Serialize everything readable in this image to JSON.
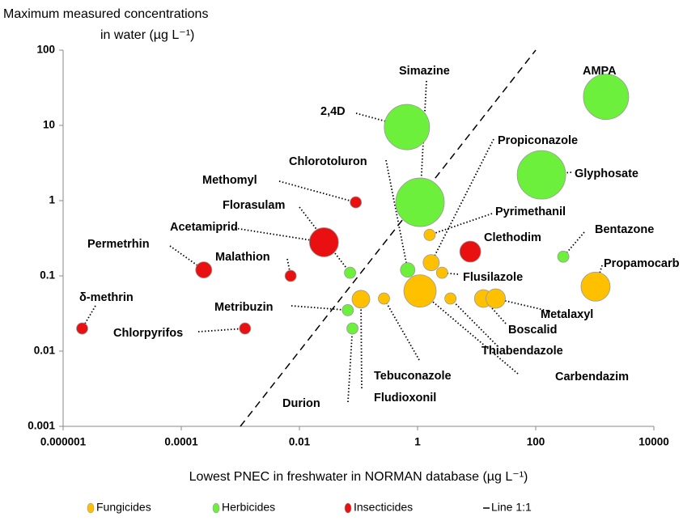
{
  "chart_data": {
    "type": "bubble",
    "y_label_lines": [
      "Maximum measured concentrations",
      "in water (µg L⁻¹)"
    ],
    "x_label": "Lowest PNEC in freshwater in NORMAN database (µg L⁻¹)",
    "log_x": true,
    "log_y": true,
    "xlim": [
      1e-06,
      10000
    ],
    "ylim": [
      0.001,
      100
    ],
    "xticks": [
      {
        "value": 1e-06,
        "label": "0.000001"
      },
      0.0001,
      0.01,
      1,
      100,
      10000
    ],
    "yticks": [
      0.001,
      0.01,
      0.1,
      1,
      10,
      100
    ],
    "reference_line": {
      "name": "Line 1:1",
      "color": "#000000"
    },
    "series": [
      {
        "name": "Fungicides",
        "color": "#FFC000",
        "labels": [
          "Fludioxonil",
          "Tebuconazole",
          "Carbendazim",
          "Pyrimethanil",
          "Propiconazole",
          "Flusilazole",
          "Thiabendazole",
          "Boscalid",
          "Metalaxyl",
          "Propamocarb"
        ],
        "x": [
          0.11,
          0.27,
          1.1,
          1.6,
          1.7,
          2.6,
          3.6,
          13,
          21,
          1030
        ],
        "values": [
          0.049,
          0.05,
          0.063,
          0.35,
          0.15,
          0.11,
          0.05,
          0.05,
          0.05,
          0.072
        ],
        "sizes": [
          11,
          7,
          20,
          7,
          10,
          7,
          7,
          11,
          12,
          18
        ]
      },
      {
        "name": "Herbicides",
        "color": "#6CF03C",
        "labels": [
          "AMPA",
          "Glyphosate",
          "Simazine",
          "2,4D",
          "Bentazone",
          "Chlorotoluron",
          "Florasulam",
          "Metribuzin",
          "Durion"
        ],
        "x": [
          1550,
          125,
          1.1,
          0.66,
          293,
          0.68,
          0.072,
          0.066,
          0.079
        ],
        "values": [
          24,
          2.2,
          0.95,
          9.5,
          0.18,
          0.12,
          0.11,
          0.035,
          0.02
        ],
        "sizes": [
          28,
          30,
          30,
          28,
          7,
          9,
          7,
          7,
          7
        ]
      },
      {
        "name": "Insecticides",
        "color": "#E81010",
        "labels": [
          "Clethodim",
          "Methomyl",
          "Acetamiprid",
          "Permetrhin",
          "Malathion",
          "δ-methrin",
          "Chlorpyrifos"
        ],
        "x": [
          7.8,
          0.09,
          0.026,
          0.00024,
          0.0071,
          2.1e-06,
          0.0012
        ],
        "values": [
          0.21,
          0.95,
          0.28,
          0.12,
          0.1,
          0.02,
          0.02
        ],
        "sizes": [
          13,
          7,
          18,
          10,
          7,
          7,
          7
        ]
      }
    ]
  }
}
